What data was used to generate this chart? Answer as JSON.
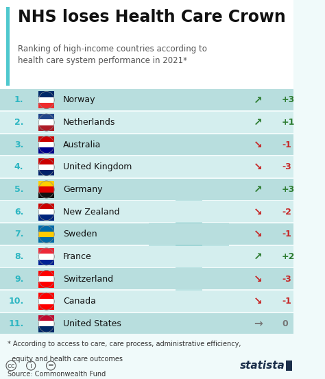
{
  "title": "NHS loses Health Care Crown",
  "subtitle": "Ranking of high-income countries according to\nhealth care system performance in 2021*",
  "countries": [
    {
      "rank": 1,
      "name": "Norway",
      "change": "+3",
      "direction": "up"
    },
    {
      "rank": 2,
      "name": "Netherlands",
      "change": "+1",
      "direction": "up"
    },
    {
      "rank": 3,
      "name": "Australia",
      "change": "-1",
      "direction": "down"
    },
    {
      "rank": 4,
      "name": "United Kingdom",
      "change": "-3",
      "direction": "down"
    },
    {
      "rank": 5,
      "name": "Germany",
      "change": "+3",
      "direction": "up"
    },
    {
      "rank": 6,
      "name": "New Zealand",
      "change": "-2",
      "direction": "down"
    },
    {
      "rank": 7,
      "name": "Sweden",
      "change": "-1",
      "direction": "down"
    },
    {
      "rank": 8,
      "name": "France",
      "change": "+2",
      "direction": "up"
    },
    {
      "rank": 9,
      "name": "Switzerland",
      "change": "-3",
      "direction": "down"
    },
    {
      "rank": 10,
      "name": "Canada",
      "change": "-1",
      "direction": "down"
    },
    {
      "rank": 11,
      "name": "United States",
      "change": "0",
      "direction": "neutral"
    }
  ],
  "footnote_line1": "* According to access to care, care process, administrative efficiency,",
  "footnote_line2": "  equity and health care outcomes",
  "footnote_line3": "Source: Commonwealth Fund",
  "bg_color": "#f0fafa",
  "header_bg": "#ffffff",
  "row_color_odd": "#b8dede",
  "row_color_even": "#d4eeee",
  "title_bar_color": "#4fc8ce",
  "up_color": "#2e7d32",
  "down_color": "#c62828",
  "neutral_color": "#757575",
  "rank_color": "#2db6c2",
  "title_color": "#111111",
  "subtitle_color": "#555555",
  "country_color": "#111111",
  "cross_color": "#7ec8c8",
  "statista_color": "#1a2e4a",
  "flag_colors": {
    "Norway": [
      "#ef2b2d",
      "#ffffff",
      "#002868"
    ],
    "Netherlands": [
      "#ae1c28",
      "#ffffff",
      "#21468b"
    ],
    "Australia": [
      "#00008b",
      "#ffffff",
      "#cc0000"
    ],
    "United Kingdom": [
      "#012169",
      "#ffffff",
      "#cc0000"
    ],
    "Germany": [
      "#111111",
      "#dd0000",
      "#ffce00"
    ],
    "New Zealand": [
      "#00247d",
      "#ffffff",
      "#cc0000"
    ],
    "Sweden": [
      "#006aa7",
      "#fecc02",
      "#006aa7"
    ],
    "France": [
      "#002395",
      "#ffffff",
      "#ed2939"
    ],
    "Switzerland": [
      "#ff0000",
      "#ffffff",
      "#ff0000"
    ],
    "Canada": [
      "#ff0000",
      "#ffffff",
      "#ff0000"
    ],
    "United States": [
      "#002868",
      "#ffffff",
      "#bf0a30"
    ]
  }
}
